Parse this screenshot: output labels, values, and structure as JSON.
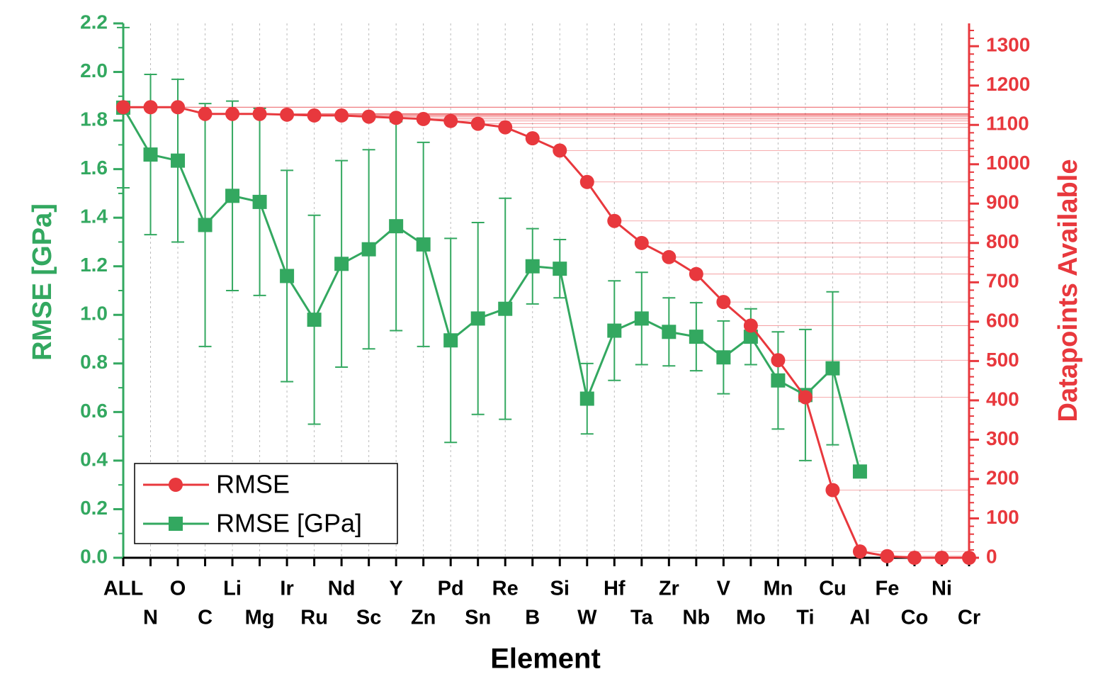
{
  "chart_data": {
    "type": "line",
    "xlabel": "Element",
    "ylabel": "RMSE [GPa]",
    "y2label": "Datapoints Available",
    "categories": [
      "ALL",
      "N",
      "O",
      "C",
      "Li",
      "Mg",
      "Ir",
      "Ru",
      "Nd",
      "Sc",
      "Y",
      "Zn",
      "Pd",
      "Sn",
      "Re",
      "B",
      "Si",
      "W",
      "Hf",
      "Ta",
      "Zr",
      "Nb",
      "V",
      "Mo",
      "Mn",
      "Ti",
      "Cu",
      "Al",
      "Fe",
      "Co",
      "Ni",
      "Cr"
    ],
    "series": [
      {
        "name": "RMSE",
        "color": "#e8383d",
        "axis": "y2",
        "marker": "circle",
        "values": [
          1145,
          1145,
          1145,
          1128,
          1128,
          1128,
          1126,
          1124,
          1124,
          1121,
          1118,
          1115,
          1110,
          1103,
          1094,
          1066,
          1035,
          955,
          856,
          800,
          764,
          721,
          650,
          590,
          502,
          408,
          172,
          16,
          4,
          0,
          0,
          0
        ]
      },
      {
        "name": "RMSE [GPa]",
        "color": "#33a860",
        "axis": "y",
        "marker": "square",
        "values": [
          1.853,
          1.66,
          1.635,
          1.37,
          1.49,
          1.465,
          1.16,
          0.98,
          1.21,
          1.27,
          1.365,
          1.29,
          0.895,
          0.985,
          1.025,
          1.2,
          1.19,
          0.655,
          0.935,
          0.985,
          0.93,
          0.91,
          0.825,
          0.91,
          0.73,
          0.67,
          0.78,
          0.355,
          null,
          null,
          null,
          null
        ],
        "errors": [
          0.33,
          0.33,
          0.335,
          0.5,
          0.39,
          0.385,
          0.435,
          0.43,
          0.425,
          0.41,
          0.43,
          0.42,
          0.42,
          0.395,
          0.455,
          0.155,
          0.12,
          0.145,
          0.205,
          0.19,
          0.14,
          0.14,
          0.15,
          0.115,
          0.2,
          0.27,
          0.315,
          0,
          null,
          null,
          null,
          null
        ]
      }
    ],
    "ylim": [
      0,
      2.2
    ],
    "yticks": [
      {
        "value": 0,
        "label": "0.0"
      },
      0.2,
      0.4,
      0.6,
      0.8,
      {
        "value": 1,
        "label": "1.0"
      },
      1.2,
      1.4,
      1.6,
      1.8,
      {
        "value": 2,
        "label": "2.0"
      },
      2.2
    ],
    "y2lim": [
      0,
      1358
    ],
    "y2ticks": [
      0,
      100,
      200,
      300,
      400,
      500,
      600,
      700,
      800,
      900,
      1000,
      1100,
      1200,
      1300
    ],
    "grid": true,
    "legend": "lower left"
  }
}
